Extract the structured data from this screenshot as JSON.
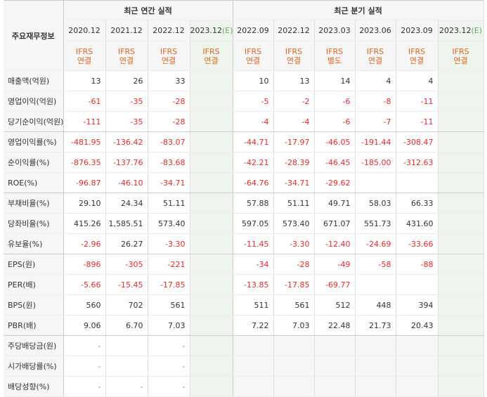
{
  "header": {
    "corner_label": "주요재무정보",
    "annual_title": "최근 연간 실적",
    "quarterly_title": "최근 분기 실적",
    "annual_periods": [
      "2020.12",
      "2021.12",
      "2022.12",
      "2023.12"
    ],
    "annual_estimate_suffix": "(E)",
    "quarterly_periods": [
      "2022.09",
      "2022.12",
      "2023.03",
      "2023.06",
      "2023.09",
      "2023.12"
    ],
    "quarterly_estimate_suffix": "(E)",
    "annual_types": [
      [
        "IFRS",
        "연결"
      ],
      [
        "IFRS",
        "연결"
      ],
      [
        "IFRS",
        "연결"
      ],
      [
        "IFRS",
        "연결"
      ]
    ],
    "quarterly_types": [
      [
        "IFRS",
        "연결"
      ],
      [
        "IFRS",
        "연결"
      ],
      [
        "IFRS",
        "별도"
      ],
      [
        "IFRS",
        "연결"
      ],
      [
        "IFRS",
        "연결"
      ],
      [
        "IFRS",
        "연결"
      ]
    ]
  },
  "rows": [
    {
      "label": "매출액(억원)",
      "values": [
        "13",
        "26",
        "33",
        "",
        "10",
        "13",
        "14",
        "4",
        "4",
        ""
      ]
    },
    {
      "label": "영업이익(억원)",
      "values": [
        "-61",
        "-35",
        "-28",
        "",
        "-5",
        "-2",
        "-6",
        "-8",
        "-11",
        ""
      ]
    },
    {
      "label": "당기순이익(억원)",
      "values": [
        "-111",
        "-35",
        "-28",
        "",
        "-4",
        "-4",
        "-6",
        "-7",
        "-11",
        ""
      ]
    },
    {
      "label": "영업이익률(%)",
      "values": [
        "-481.95",
        "-136.42",
        "-83.07",
        "",
        "-44.71",
        "-17.97",
        "-46.05",
        "-191.44",
        "-308.47",
        ""
      ]
    },
    {
      "label": "순이익률(%)",
      "values": [
        "-876.35",
        "-137.76",
        "-83.68",
        "",
        "-42.21",
        "-28.39",
        "-46.45",
        "-185.00",
        "-312.63",
        ""
      ]
    },
    {
      "label": "ROE(%)",
      "values": [
        "-96.87",
        "-46.10",
        "-34.71",
        "",
        "-64.76",
        "-34.71",
        "-29.62",
        "",
        "",
        ""
      ]
    },
    {
      "label": "부채비율(%)",
      "values": [
        "29.10",
        "24.34",
        "51.11",
        "",
        "57.88",
        "51.11",
        "49.71",
        "58.03",
        "66.33",
        ""
      ]
    },
    {
      "label": "당좌비율(%)",
      "values": [
        "415.26",
        "1,585.51",
        "573.40",
        "",
        "597.05",
        "573.40",
        "671.07",
        "551.73",
        "431.60",
        ""
      ]
    },
    {
      "label": "유보율(%)",
      "values": [
        "-2.96",
        "26.27",
        "-3.30",
        "",
        "-11.45",
        "-3.30",
        "-12.40",
        "-24.69",
        "-33.66",
        ""
      ]
    },
    {
      "label": "EPS(원)",
      "values": [
        "-896",
        "-305",
        "-221",
        "",
        "-34",
        "-28",
        "-49",
        "-58",
        "-88",
        ""
      ]
    },
    {
      "label": "PER(배)",
      "values": [
        "-5.66",
        "-15.45",
        "-17.85",
        "",
        "-13.85",
        "-17.85",
        "-69.77",
        "",
        "",
        ""
      ]
    },
    {
      "label": "BPS(원)",
      "values": [
        "560",
        "702",
        "561",
        "",
        "511",
        "561",
        "512",
        "448",
        "394",
        ""
      ]
    },
    {
      "label": "PBR(배)",
      "values": [
        "9.06",
        "6.70",
        "7.03",
        "",
        "7.22",
        "7.03",
        "22.48",
        "21.73",
        "20.43",
        ""
      ]
    },
    {
      "label": "주당배당금(원)",
      "values": [
        "-",
        "",
        "-",
        "",
        "",
        "",
        "",
        "",
        "",
        ""
      ]
    },
    {
      "label": "시가배당률(%)",
      "values": [
        "-",
        "",
        "-",
        "",
        "",
        "",
        "",
        "",
        "",
        ""
      ]
    },
    {
      "label": "배당성향(%)",
      "values": [
        "-",
        "-",
        "-",
        "",
        "",
        "",
        "",
        "",
        "",
        ""
      ]
    }
  ],
  "group_breaks_after": [
    2,
    5,
    8,
    12
  ],
  "colors": {
    "negative": "#e42c2c",
    "type_label": "#e0651e",
    "estimate_bg": "#edf5ed",
    "header_bg": "#f6f6f6"
  }
}
